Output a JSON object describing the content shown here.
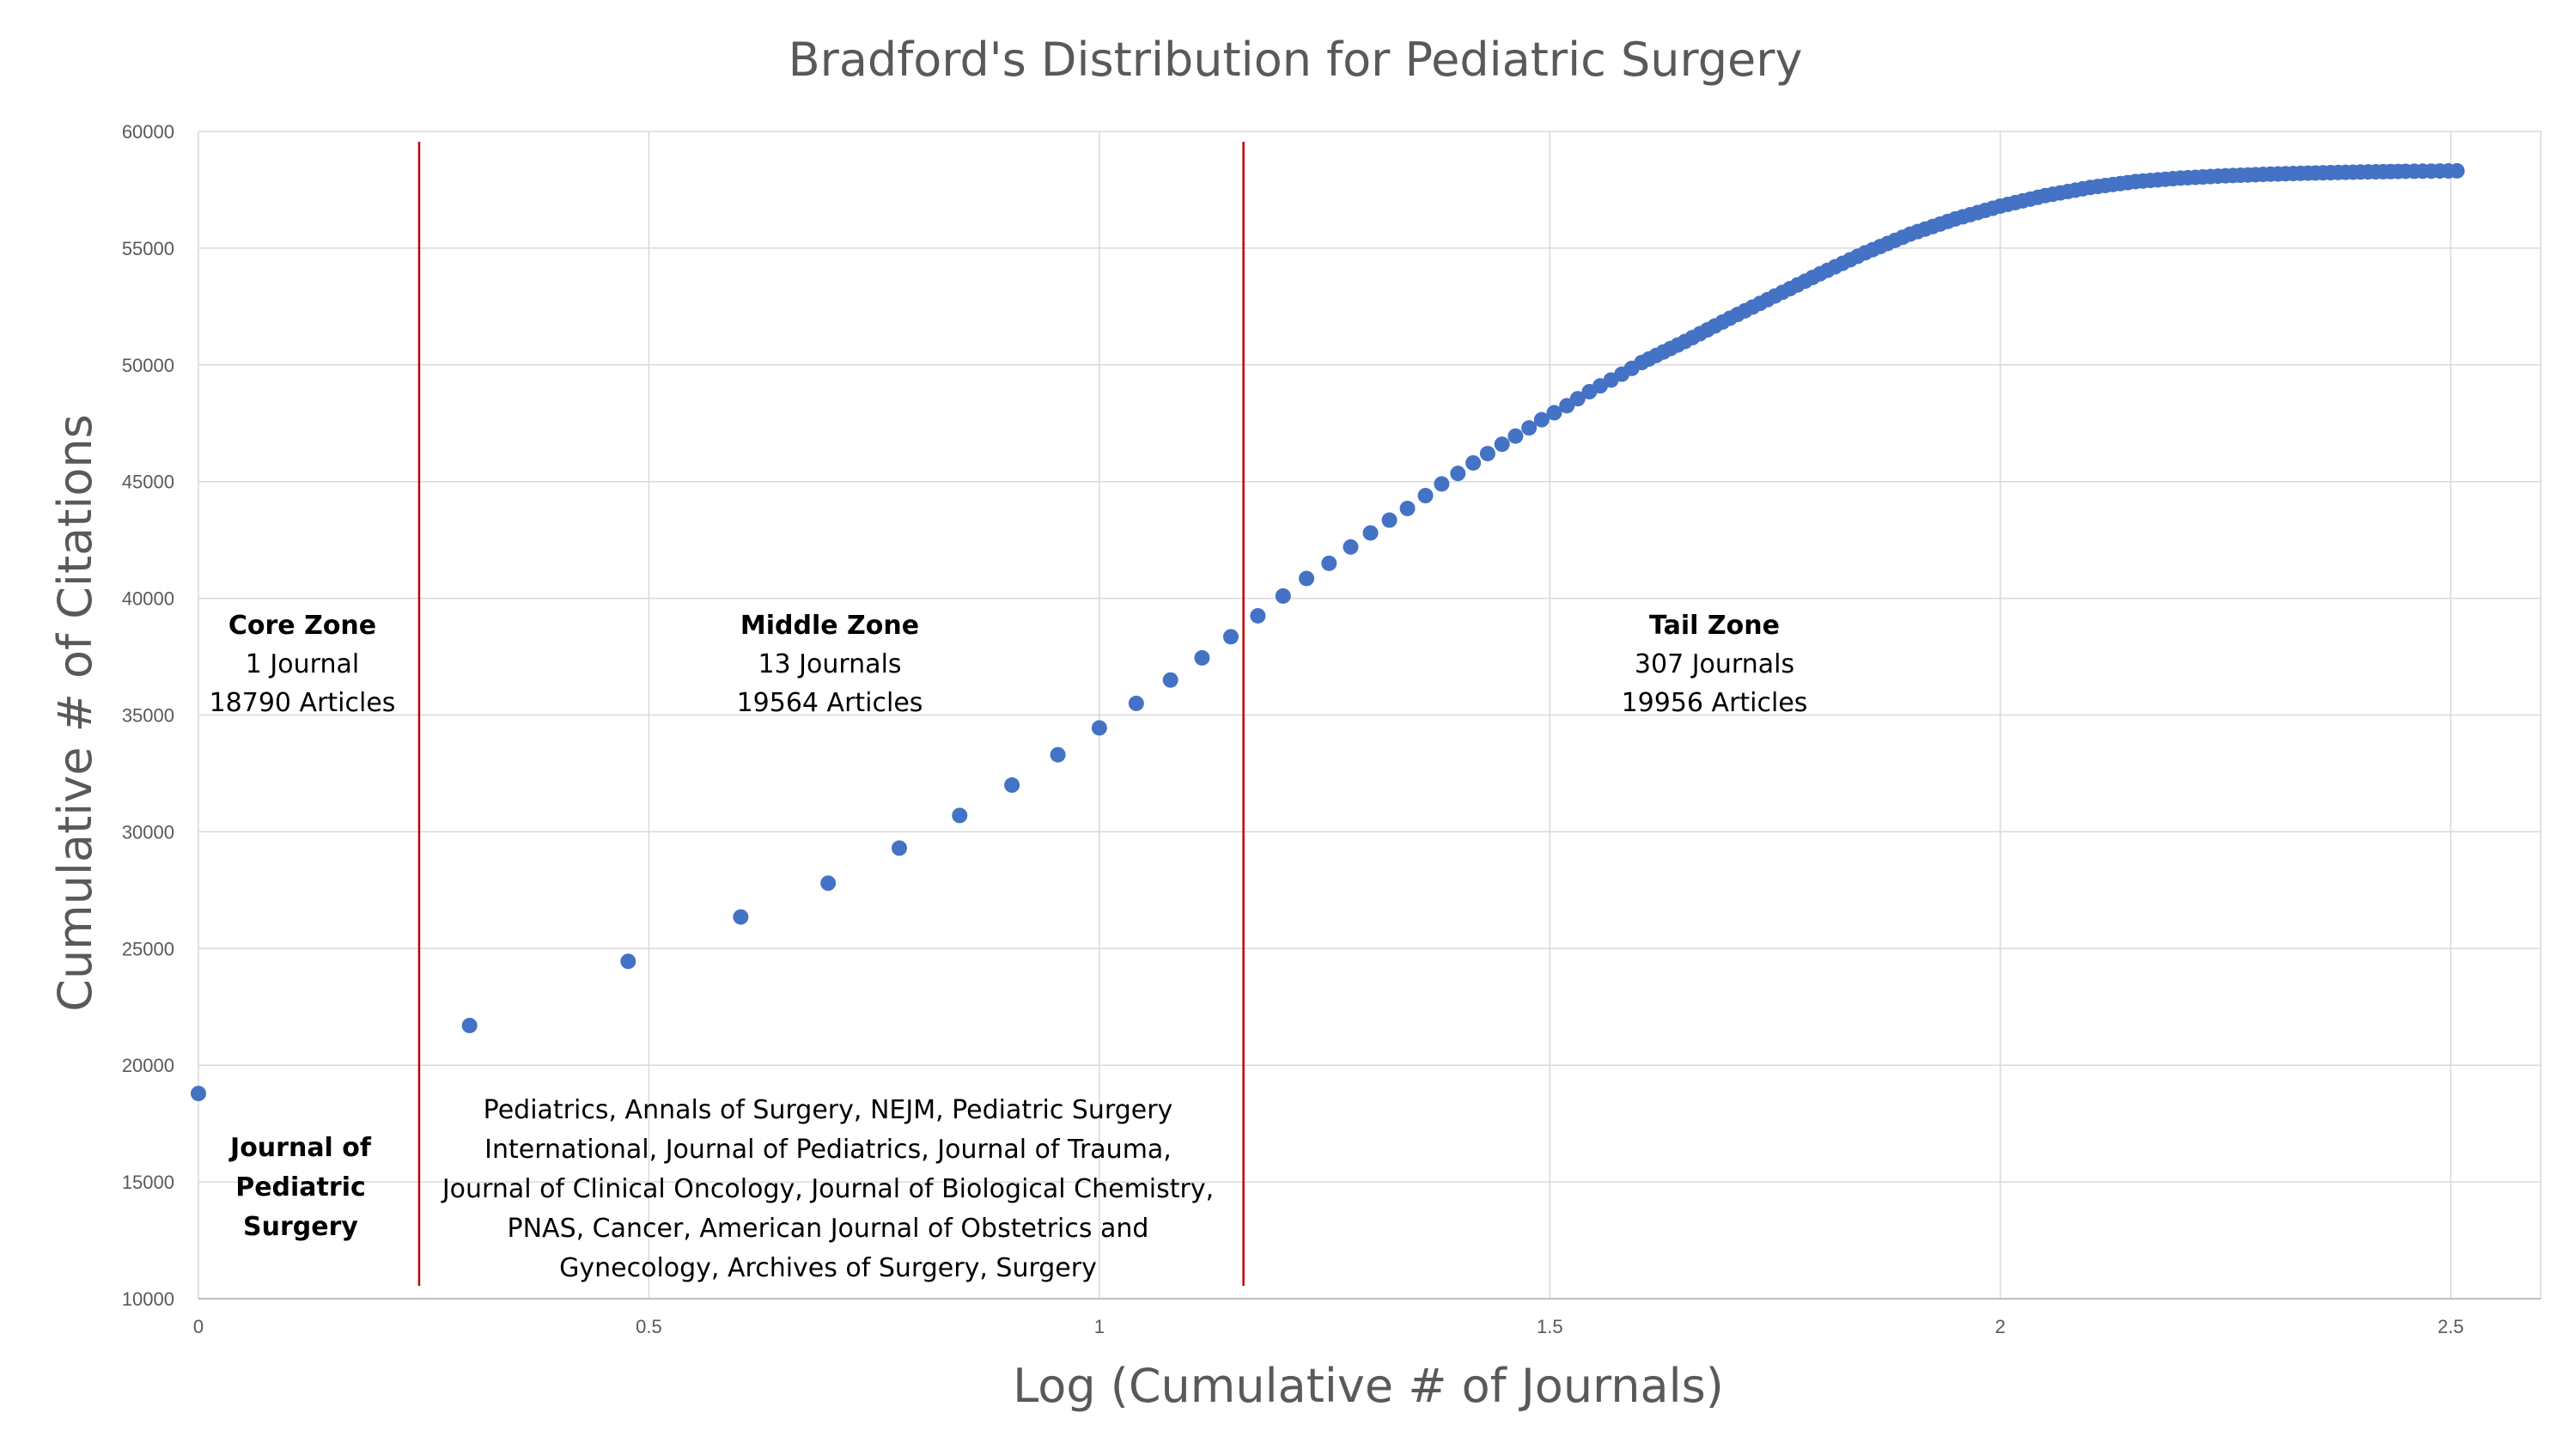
{
  "chart_data": {
    "type": "scatter",
    "title": "Bradford's Distribution for Pediatric Surgery",
    "xlabel": "Log (Cumulative # of Journals)",
    "ylabel": "Cumulative # of Citations",
    "xlim": [
      0,
      2.6
    ],
    "ylim": [
      10000,
      60000
    ],
    "x_ticks": [
      "0",
      "0.5",
      "1",
      "1.5",
      "2",
      "2.5"
    ],
    "y_ticks": [
      "10000",
      "15000",
      "20000",
      "25000",
      "30000",
      "35000",
      "40000",
      "45000",
      "50000",
      "55000",
      "60000"
    ],
    "grid": true,
    "marker_color": "#4472C4",
    "divider_color": "#C00000",
    "dividers_x": [
      0.245,
      1.16
    ],
    "series": [
      {
        "points": [
          [
            0.0,
            18790
          ],
          [
            0.301,
            21700
          ],
          [
            0.477,
            24450
          ],
          [
            0.602,
            26350
          ],
          [
            0.699,
            27800
          ],
          [
            0.778,
            29300
          ],
          [
            0.845,
            30700
          ],
          [
            0.903,
            32000
          ],
          [
            0.954,
            33300
          ],
          [
            1.0,
            34450
          ],
          [
            1.041,
            35500
          ],
          [
            1.079,
            36500
          ],
          [
            1.114,
            37450
          ],
          [
            1.146,
            38354
          ],
          [
            1.176,
            39250
          ],
          [
            1.204,
            40100
          ],
          [
            1.23,
            40850
          ],
          [
            1.255,
            41500
          ],
          [
            1.279,
            42200
          ],
          [
            1.301,
            42800
          ],
          [
            1.322,
            43350
          ],
          [
            1.342,
            43850
          ],
          [
            1.362,
            44400
          ],
          [
            1.38,
            44900
          ],
          [
            1.398,
            45350
          ],
          [
            1.415,
            45800
          ],
          [
            1.431,
            46200
          ],
          [
            1.447,
            46600
          ],
          [
            1.462,
            46950
          ],
          [
            1.477,
            47300
          ],
          [
            1.491,
            47650
          ],
          [
            1.505,
            47950
          ],
          [
            1.519,
            48250
          ],
          [
            1.531,
            48550
          ],
          [
            1.544,
            48850
          ],
          [
            1.556,
            49100
          ],
          [
            1.568,
            49350
          ],
          [
            1.58,
            49600
          ],
          [
            1.591,
            49850
          ],
          [
            1.602,
            50100
          ],
          [
            1.65,
            51000
          ],
          [
            1.7,
            52000
          ],
          [
            1.75,
            52950
          ],
          [
            1.8,
            53900
          ],
          [
            1.85,
            54800
          ],
          [
            1.9,
            55600
          ],
          [
            1.95,
            56250
          ],
          [
            2.0,
            56800
          ],
          [
            2.05,
            57250
          ],
          [
            2.1,
            57600
          ],
          [
            2.15,
            57850
          ],
          [
            2.2,
            58000
          ],
          [
            2.25,
            58100
          ],
          [
            2.3,
            58170
          ],
          [
            2.35,
            58220
          ],
          [
            2.4,
            58260
          ],
          [
            2.45,
            58290
          ],
          [
            2.507,
            58310
          ]
        ]
      }
    ],
    "annotations": {
      "core": {
        "heading": "Core Zone",
        "line1": "1 Journal",
        "line2": "18790 Articles"
      },
      "middle": {
        "heading": "Middle Zone",
        "line1": "13 Journals",
        "line2": "19564 Articles"
      },
      "tail": {
        "heading": "Tail Zone",
        "line1": "307 Journals",
        "line2": "19956 Articles"
      },
      "core_journal": [
        "Journal of",
        "Pediatric",
        "Surgery"
      ],
      "middle_journals": [
        "Pediatrics, Annals of Surgery, NEJM, Pediatric Surgery",
        "International, Journal of Pediatrics, Journal of Trauma,",
        "Journal of Clinical Oncology, Journal of Biological Chemistry,",
        "PNAS, Cancer, American Journal of Obstetrics and",
        "Gynecology, Archives of Surgery, Surgery"
      ]
    }
  }
}
